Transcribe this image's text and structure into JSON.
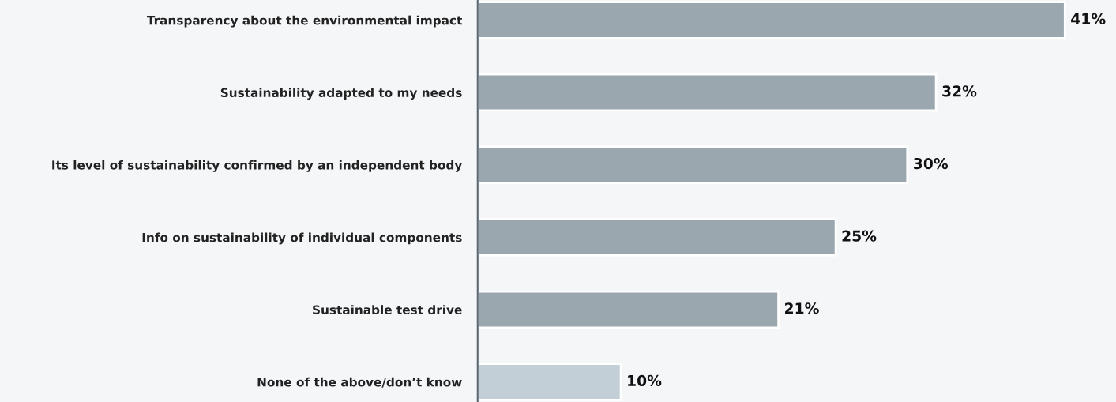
{
  "chart_data": {
    "type": "bar",
    "orientation": "horizontal",
    "categories": [
      "Transparency about the environmental impact",
      "Sustainability adapted to my needs",
      "Its level of sustainability confirmed by an independent body",
      "Info on sustainability of individual components",
      "Sustainable test drive",
      "None of the above/don’t know"
    ],
    "values": [
      41,
      32,
      30,
      25,
      21,
      10
    ],
    "colors": [
      "#9ba7af",
      "#9ba7af",
      "#9ba7af",
      "#9ba7af",
      "#9ba7af",
      "#c3cfd7"
    ],
    "value_labels": [
      "41%",
      "32%",
      "30%",
      "25%",
      "21%",
      "10%"
    ],
    "grid": false
  }
}
